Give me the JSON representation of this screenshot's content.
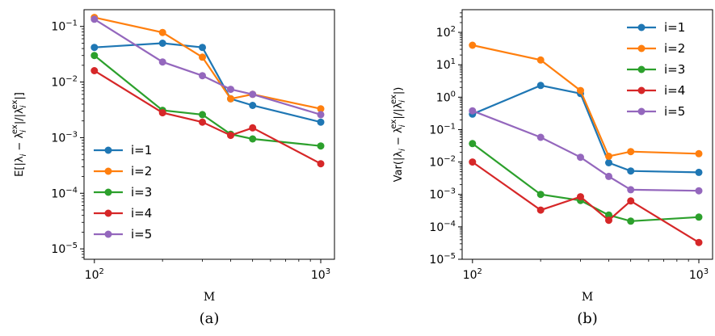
{
  "chart_data": [
    {
      "type": "line",
      "panel": "a",
      "caption": "(a)",
      "xlabel": "M",
      "ylabel": "E[|λ_i − λ_i^ex|/|λ_i^ex|]",
      "xscale": "log",
      "yscale": "log",
      "xlim": [
        90,
        1150
      ],
      "ylim": [
        6.5e-06,
        0.2
      ],
      "xticks": [
        {
          "value": 100,
          "label": "10^2"
        },
        {
          "value": 1000,
          "label": "10^3"
        }
      ],
      "yticks": [
        {
          "value": 1e-05,
          "label": "10^-5"
        },
        {
          "value": 0.0001,
          "label": "10^-4"
        },
        {
          "value": 0.001,
          "label": "10^-3"
        },
        {
          "value": 0.01,
          "label": "10^-2"
        },
        {
          "value": 0.1,
          "label": "10^-1"
        }
      ],
      "legend_position": "lower-left",
      "x": [
        100,
        200,
        300,
        400,
        500,
        1000
      ],
      "series": [
        {
          "name": "i=1",
          "color": "#1f77b4",
          "values": [
            0.042,
            0.05,
            0.042,
            0.005,
            0.0038,
            0.0019
          ]
        },
        {
          "name": "i=2",
          "color": "#ff7f0e",
          "values": [
            0.145,
            0.078,
            0.028,
            0.005,
            0.006,
            0.0033
          ]
        },
        {
          "name": "i=3",
          "color": "#2ca02c",
          "values": [
            0.03,
            0.0031,
            0.0026,
            0.00115,
            0.00095,
            0.00071
          ]
        },
        {
          "name": "i=4",
          "color": "#d62728",
          "values": [
            0.016,
            0.0028,
            0.0019,
            0.0011,
            0.0015,
            0.00034
          ]
        },
        {
          "name": "i=5",
          "color": "#9467bd",
          "values": [
            0.135,
            0.023,
            0.013,
            0.0074,
            0.006,
            0.0026
          ]
        }
      ]
    },
    {
      "type": "line",
      "panel": "b",
      "caption": "(b)",
      "xlabel": "M",
      "ylabel": "Var(|λ_i − λ_i^ex|/|λ_i^ex|)",
      "xscale": "log",
      "yscale": "log",
      "xlim": [
        90,
        1150
      ],
      "ylim": [
        1e-05,
        500
      ],
      "xticks": [
        {
          "value": 100,
          "label": "10^2"
        },
        {
          "value": 1000,
          "label": "10^3"
        }
      ],
      "yticks": [
        {
          "value": 1e-05,
          "label": "10^-5"
        },
        {
          "value": 0.0001,
          "label": "10^-4"
        },
        {
          "value": 0.001,
          "label": "10^-3"
        },
        {
          "value": 0.01,
          "label": "10^-2"
        },
        {
          "value": 0.1,
          "label": "10^-1"
        },
        {
          "value": 1,
          "label": "10^0"
        },
        {
          "value": 10,
          "label": "10^1"
        },
        {
          "value": 100,
          "label": "10^2"
        }
      ],
      "legend_position": "upper-right",
      "x": [
        100,
        200,
        300,
        400,
        500,
        1000
      ],
      "series": [
        {
          "name": "i=1",
          "color": "#1f77b4",
          "values": [
            0.3,
            2.3,
            1.3,
            0.0095,
            0.0053,
            0.0048
          ]
        },
        {
          "name": "i=2",
          "color": "#ff7f0e",
          "values": [
            40,
            14,
            1.6,
            0.015,
            0.021,
            0.018
          ]
        },
        {
          "name": "i=3",
          "color": "#2ca02c",
          "values": [
            0.037,
            0.001,
            0.00065,
            0.00023,
            0.00015,
            0.0002
          ]
        },
        {
          "name": "i=4",
          "color": "#d62728",
          "values": [
            0.01,
            0.00033,
            0.00085,
            0.00016,
            0.00063,
            3.3e-05
          ]
        },
        {
          "name": "i=5",
          "color": "#9467bd",
          "values": [
            0.38,
            0.058,
            0.014,
            0.0036,
            0.0014,
            0.0013
          ]
        }
      ]
    }
  ]
}
